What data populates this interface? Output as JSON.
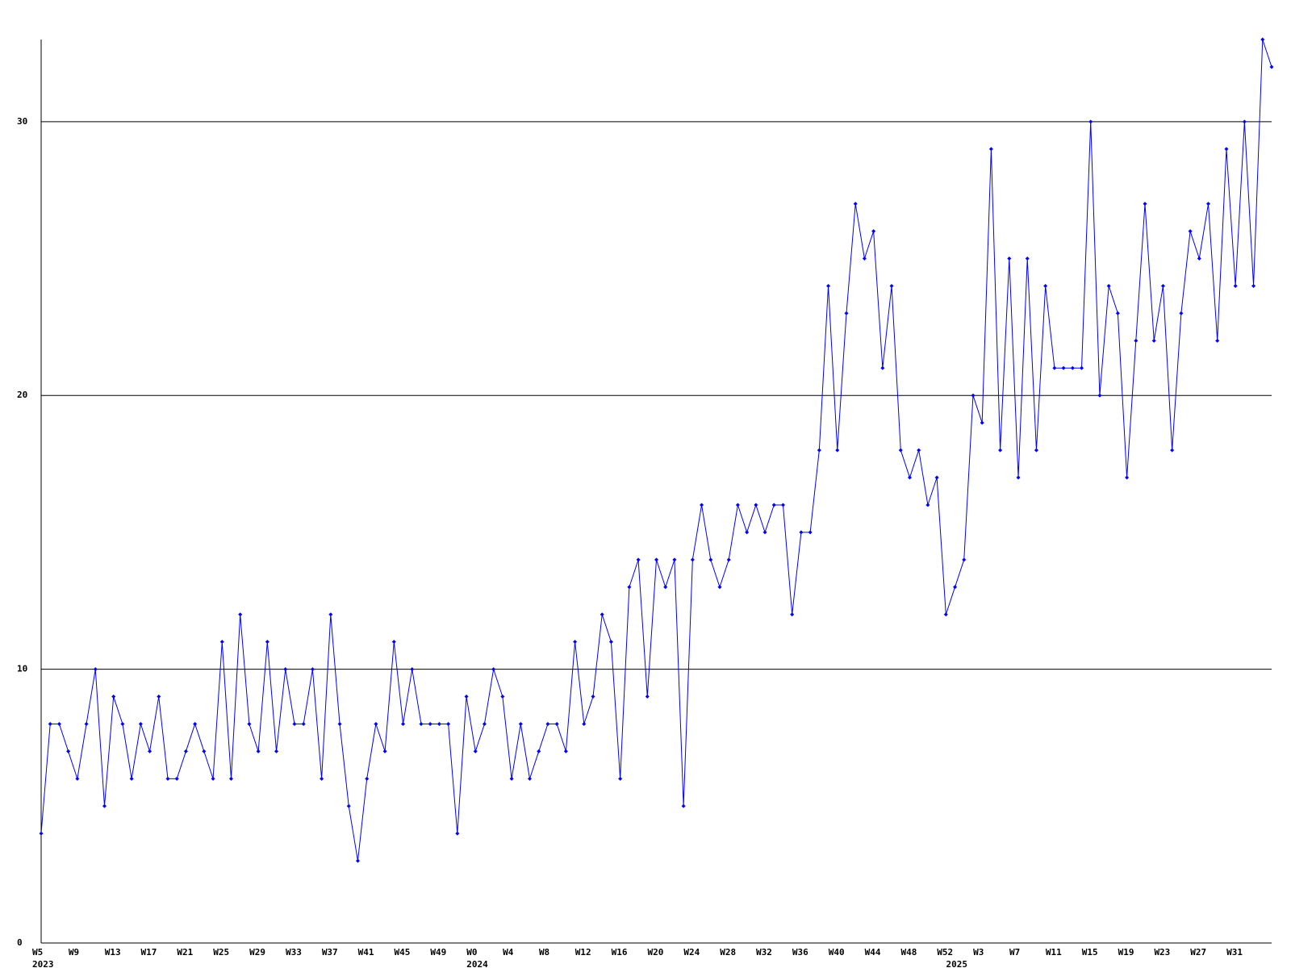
{
  "chart_data": {
    "type": "line",
    "categories": [
      "W5",
      null,
      null,
      null,
      "W9",
      null,
      null,
      null,
      "W13",
      null,
      null,
      null,
      "W17",
      null,
      null,
      null,
      "W21",
      null,
      null,
      null,
      "W25",
      null,
      null,
      null,
      "W29",
      null,
      null,
      null,
      "W33",
      null,
      null,
      null,
      "W37",
      null,
      null,
      null,
      "W41",
      null,
      null,
      null,
      "W45",
      null,
      null,
      null,
      "W49",
      null,
      null,
      null,
      "W0",
      null,
      null,
      null,
      "W4",
      null,
      null,
      null,
      "W8",
      null,
      null,
      null,
      "W12",
      null,
      null,
      null,
      "W16",
      null,
      null,
      null,
      "W20",
      null,
      null,
      null,
      "W24",
      null,
      null,
      null,
      "W28",
      null,
      null,
      null,
      "W32",
      null,
      null,
      null,
      "W36",
      null,
      null,
      null,
      "W40",
      null,
      null,
      null,
      "W44",
      null,
      null,
      null,
      "W48",
      null,
      null,
      null,
      "W52",
      null,
      null,
      null,
      "W3",
      null,
      null,
      null,
      "W7",
      null,
      null,
      null,
      "W11",
      null,
      null,
      null,
      "W15",
      null,
      null,
      null,
      "W19",
      null,
      null,
      null,
      "W23",
      null,
      null,
      null,
      "W27",
      null,
      null,
      null,
      "W31",
      null,
      null,
      null,
      null
    ],
    "years": [
      "2023",
      null,
      null,
      null,
      null,
      null,
      null,
      null,
      null,
      null,
      null,
      null,
      null,
      null,
      null,
      null,
      null,
      null,
      null,
      null,
      null,
      null,
      null,
      null,
      null,
      null,
      null,
      null,
      null,
      null,
      null,
      null,
      null,
      null,
      null,
      null,
      null,
      null,
      null,
      null,
      null,
      null,
      null,
      null,
      null,
      null,
      null,
      null,
      "2024",
      null,
      null,
      null,
      null,
      null,
      null,
      null,
      null,
      null,
      null,
      null,
      null,
      null,
      null,
      null,
      null,
      null,
      null,
      null,
      null,
      null,
      null,
      null,
      null,
      null,
      null,
      null,
      null,
      null,
      null,
      null,
      null,
      null,
      null,
      null,
      null,
      null,
      null,
      null,
      null,
      null,
      null,
      null,
      null,
      null,
      null,
      null,
      null,
      null,
      null,
      null,
      null,
      "2025",
      null,
      null,
      null,
      null,
      null,
      null,
      null,
      null,
      null,
      null,
      null,
      null,
      null,
      null,
      null,
      null,
      null,
      null,
      null,
      null,
      null,
      null,
      null,
      null,
      null,
      null,
      null,
      null,
      null,
      null,
      null,
      null,
      null,
      null,
      null
    ],
    "series": [
      {
        "color": "#0000ff",
        "values": [
          4,
          8,
          8,
          7,
          6,
          8,
          10,
          5,
          9,
          8,
          6,
          8,
          7,
          9,
          6,
          6,
          7,
          8,
          7,
          6,
          11,
          6,
          12,
          8,
          7,
          11,
          7,
          10,
          8,
          8,
          10,
          6,
          12,
          8,
          5,
          3,
          6,
          8,
          7,
          11,
          8,
          10,
          8,
          8,
          8,
          8,
          4,
          9,
          7,
          8,
          10,
          9,
          6,
          8,
          6,
          7,
          8,
          8,
          7,
          11,
          8,
          9,
          12,
          11,
          6,
          13,
          14,
          9,
          14,
          13,
          14,
          5,
          14,
          16,
          14,
          13,
          14,
          16,
          15,
          16,
          15,
          16,
          16,
          12,
          15,
          15,
          18,
          24,
          18,
          23,
          27,
          25,
          26,
          21,
          24,
          18,
          17,
          18,
          16,
          17,
          12,
          13,
          14,
          20,
          19,
          29,
          18,
          25,
          17,
          25,
          18,
          24,
          21,
          21,
          21,
          21,
          30,
          20,
          24,
          23,
          17,
          22,
          27,
          22,
          24,
          18,
          23,
          26,
          25,
          27,
          22,
          29,
          24,
          30,
          24,
          33,
          32
        ]
      }
    ],
    "ylim": [
      0,
      33
    ],
    "yticks": [
      0,
      10,
      20,
      30
    ],
    "grid": true
  }
}
